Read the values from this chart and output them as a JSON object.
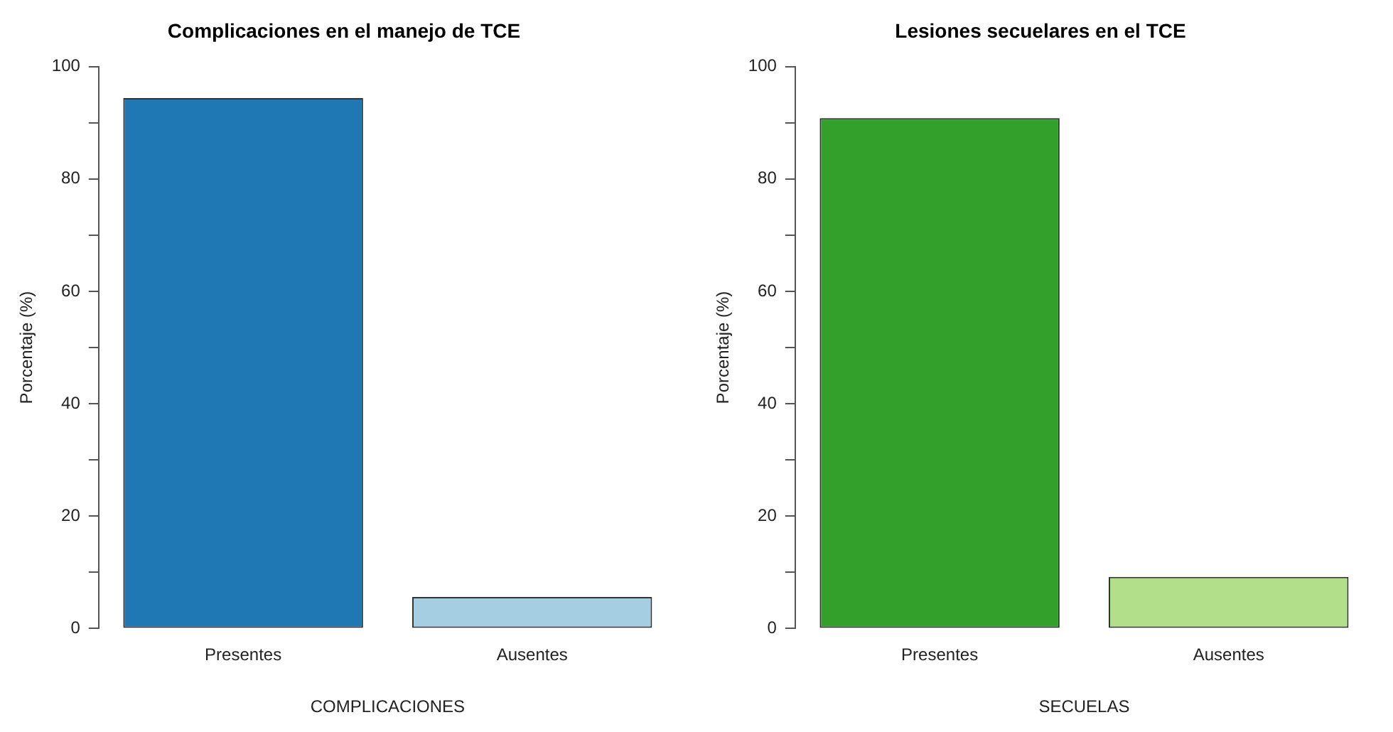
{
  "chart_data": [
    {
      "type": "bar",
      "title": "Complicaciones en el manejo de TCE",
      "xlabel": "COMPLICACIONES",
      "ylabel": "Porcentaje (%)",
      "categories": [
        "Presentes",
        "Ausentes"
      ],
      "values": [
        94.4,
        5.6
      ],
      "colors": [
        "#1f78b4",
        "#a6cee3"
      ],
      "ylim": [
        0,
        100
      ],
      "yticks": [
        0,
        {
          "value": 10,
          "label": null
        },
        20,
        {
          "value": 30,
          "label": null
        },
        40,
        {
          "value": 50,
          "label": null
        },
        60,
        {
          "value": 70,
          "label": null
        },
        80,
        {
          "value": 90,
          "label": null
        },
        100
      ],
      "grid": false,
      "legend": false
    },
    {
      "type": "bar",
      "title": "Lesiones secuelares en el TCE",
      "xlabel": "SECUELAS",
      "ylabel": "Porcentaje (%)",
      "categories": [
        "Presentes",
        "Ausentes"
      ],
      "values": [
        90.8,
        9.2
      ],
      "colors": [
        "#33a02c",
        "#b2df8a"
      ],
      "ylim": [
        0,
        100
      ],
      "yticks": [
        0,
        {
          "value": 10,
          "label": null
        },
        20,
        {
          "value": 30,
          "label": null
        },
        40,
        {
          "value": 50,
          "label": null
        },
        60,
        {
          "value": 70,
          "label": null
        },
        80,
        {
          "value": 90,
          "label": null
        },
        100
      ],
      "grid": false,
      "legend": false
    }
  ]
}
